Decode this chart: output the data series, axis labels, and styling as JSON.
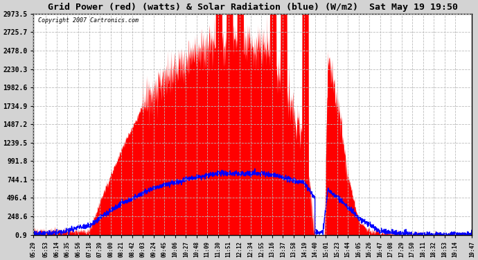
{
  "title": "Grid Power (red) (watts) & Solar Radiation (blue) (W/m2)  Sat May 19 19:50",
  "copyright": "Copyright 2007 Cartronics.com",
  "yticks": [
    0.9,
    248.6,
    496.4,
    744.1,
    991.8,
    1239.5,
    1487.2,
    1734.9,
    1982.6,
    2230.3,
    2478.0,
    2725.7,
    2973.5
  ],
  "ylim": [
    0.9,
    2973.5
  ],
  "bg_color": "#d3d3d3",
  "plot_bg_color": "#ffffff",
  "grid_color": "#bbbbbb",
  "fill_color": "#ff0000",
  "line_color": "#0000ff",
  "xtick_labels": [
    "05:29",
    "05:53",
    "06:14",
    "06:35",
    "06:56",
    "07:18",
    "07:39",
    "08:00",
    "08:21",
    "08:42",
    "09:03",
    "09:24",
    "09:45",
    "10:06",
    "10:27",
    "10:48",
    "11:09",
    "11:30",
    "11:51",
    "12:12",
    "12:34",
    "12:55",
    "13:16",
    "13:37",
    "13:58",
    "14:19",
    "14:40",
    "15:01",
    "15:23",
    "15:44",
    "16:05",
    "16:26",
    "16:47",
    "17:08",
    "17:29",
    "17:50",
    "18:11",
    "18:32",
    "18:53",
    "19:14",
    "19:47"
  ]
}
